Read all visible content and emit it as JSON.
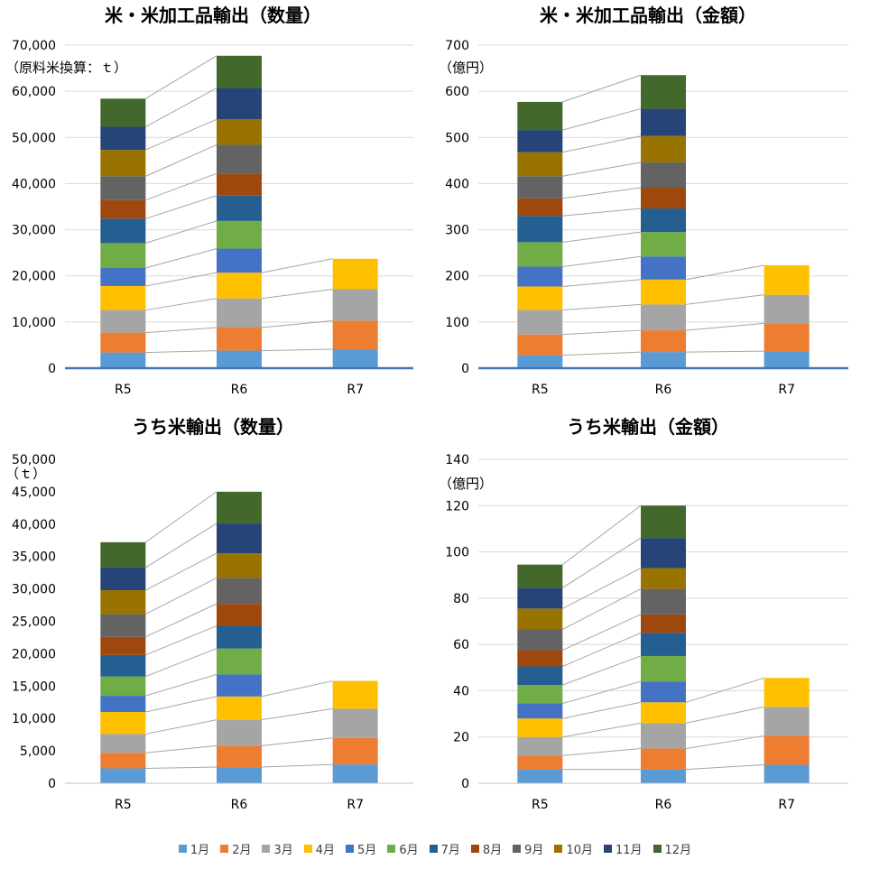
{
  "colors": {
    "1月": "#5B9BD5",
    "2月": "#ED7D31",
    "3月": "#A5A5A5",
    "4月": "#FFC000",
    "5月": "#4472C4",
    "6月": "#70AD47",
    "7月": "#255E91",
    "8月": "#9E480E",
    "9月": "#636363",
    "10月": "#997300",
    "11月": "#264478",
    "12月": "#43682B"
  },
  "legend": [
    "1月",
    "2月",
    "3月",
    "4月",
    "5月",
    "6月",
    "7月",
    "8月",
    "9月",
    "10月",
    "11月",
    "12月"
  ],
  "chart_data": [
    {
      "type": "bar",
      "stacked": true,
      "title": "米・米加工品輸出（数量）",
      "unit_label": "（原料米換算：ｔ）",
      "categories": [
        "R5",
        "R6",
        "R7"
      ],
      "ylim": [
        0,
        70000
      ],
      "yticks": [
        0,
        10000,
        20000,
        30000,
        40000,
        50000,
        60000,
        70000
      ],
      "grid": true,
      "series": [
        {
          "name": "1月",
          "values": [
            3400,
            3800,
            4100
          ]
        },
        {
          "name": "2月",
          "values": [
            4300,
            5000,
            6200
          ]
        },
        {
          "name": "3月",
          "values": [
            4900,
            6300,
            6800
          ]
        },
        {
          "name": "4月",
          "values": [
            5200,
            5600,
            6600
          ]
        },
        {
          "name": "5月",
          "values": [
            3900,
            5200,
            0
          ]
        },
        {
          "name": "6月",
          "values": [
            5400,
            6000,
            0
          ]
        },
        {
          "name": "7月",
          "values": [
            5300,
            5500,
            0
          ]
        },
        {
          "name": "8月",
          "values": [
            4000,
            4800,
            0
          ]
        },
        {
          "name": "9月",
          "values": [
            5200,
            6200,
            0
          ]
        },
        {
          "name": "10月",
          "values": [
            5700,
            5500,
            0
          ]
        },
        {
          "name": "11月",
          "values": [
            5000,
            6800,
            0
          ]
        },
        {
          "name": "12月",
          "values": [
            6100,
            7000,
            0
          ]
        }
      ]
    },
    {
      "type": "bar",
      "stacked": true,
      "title": "米・米加工品輸出（金額）",
      "unit_label": "（億円）",
      "categories": [
        "R5",
        "R6",
        "R7"
      ],
      "ylim": [
        0,
        700
      ],
      "yticks": [
        0,
        100,
        200,
        300,
        400,
        500,
        600,
        700
      ],
      "grid": true,
      "series": [
        {
          "name": "1月",
          "values": [
            28,
            35,
            37
          ]
        },
        {
          "name": "2月",
          "values": [
            45,
            47,
            60
          ]
        },
        {
          "name": "3月",
          "values": [
            53,
            56,
            62
          ]
        },
        {
          "name": "4月",
          "values": [
            51,
            54,
            64
          ]
        },
        {
          "name": "5月",
          "values": [
            43,
            50,
            0
          ]
        },
        {
          "name": "6月",
          "values": [
            53,
            53,
            0
          ]
        },
        {
          "name": "7月",
          "values": [
            57,
            51,
            0
          ]
        },
        {
          "name": "8月",
          "values": [
            38,
            45,
            0
          ]
        },
        {
          "name": "9月",
          "values": [
            48,
            55,
            0
          ]
        },
        {
          "name": "10月",
          "values": [
            52,
            57,
            0
          ]
        },
        {
          "name": "11月",
          "values": [
            48,
            59,
            0
          ]
        },
        {
          "name": "12月",
          "values": [
            61,
            73,
            0
          ]
        }
      ]
    },
    {
      "type": "bar",
      "stacked": true,
      "title": "うち米輸出（数量）",
      "unit_label": "（ｔ）",
      "categories": [
        "R5",
        "R6",
        "R7"
      ],
      "ylim": [
        0,
        50000
      ],
      "yticks": [
        0,
        5000,
        10000,
        15000,
        20000,
        25000,
        30000,
        35000,
        40000,
        45000,
        50000
      ],
      "grid": false,
      "series": [
        {
          "name": "1月",
          "values": [
            2300,
            2500,
            2900
          ]
        },
        {
          "name": "2月",
          "values": [
            2400,
            3300,
            4100
          ]
        },
        {
          "name": "3月",
          "values": [
            2900,
            4000,
            4500
          ]
        },
        {
          "name": "4月",
          "values": [
            3400,
            3600,
            4300
          ]
        },
        {
          "name": "5月",
          "values": [
            2500,
            3400,
            0
          ]
        },
        {
          "name": "6月",
          "values": [
            3000,
            4000,
            0
          ]
        },
        {
          "name": "7月",
          "values": [
            3300,
            3500,
            0
          ]
        },
        {
          "name": "8月",
          "values": [
            2800,
            3400,
            0
          ]
        },
        {
          "name": "9月",
          "values": [
            3500,
            4000,
            0
          ]
        },
        {
          "name": "10月",
          "values": [
            3700,
            3800,
            0
          ]
        },
        {
          "name": "11月",
          "values": [
            3500,
            4600,
            0
          ]
        },
        {
          "name": "12月",
          "values": [
            3900,
            4900,
            0
          ]
        }
      ]
    },
    {
      "type": "bar",
      "stacked": true,
      "title": "うち米輸出（金額）",
      "unit_label": "（億円）",
      "categories": [
        "R5",
        "R6",
        "R7"
      ],
      "ylim": [
        0,
        140
      ],
      "yticks": [
        0,
        20,
        40,
        60,
        80,
        100,
        120,
        140
      ],
      "grid": true,
      "series": [
        {
          "name": "1月",
          "values": [
            6,
            6,
            8
          ]
        },
        {
          "name": "2月",
          "values": [
            6,
            9,
            12.5
          ]
        },
        {
          "name": "3月",
          "values": [
            8,
            11,
            12.5
          ]
        },
        {
          "name": "4月",
          "values": [
            8,
            9,
            12.5
          ]
        },
        {
          "name": "5月",
          "values": [
            6.5,
            9,
            0
          ]
        },
        {
          "name": "6月",
          "values": [
            8,
            11,
            0
          ]
        },
        {
          "name": "7月",
          "values": [
            8,
            10,
            0
          ]
        },
        {
          "name": "8月",
          "values": [
            7,
            8,
            0
          ]
        },
        {
          "name": "9月",
          "values": [
            9,
            11,
            0
          ]
        },
        {
          "name": "10月",
          "values": [
            9,
            9,
            0
          ]
        },
        {
          "name": "11月",
          "values": [
            9,
            13,
            0
          ]
        },
        {
          "name": "12月",
          "values": [
            10,
            14,
            0
          ]
        }
      ]
    }
  ]
}
